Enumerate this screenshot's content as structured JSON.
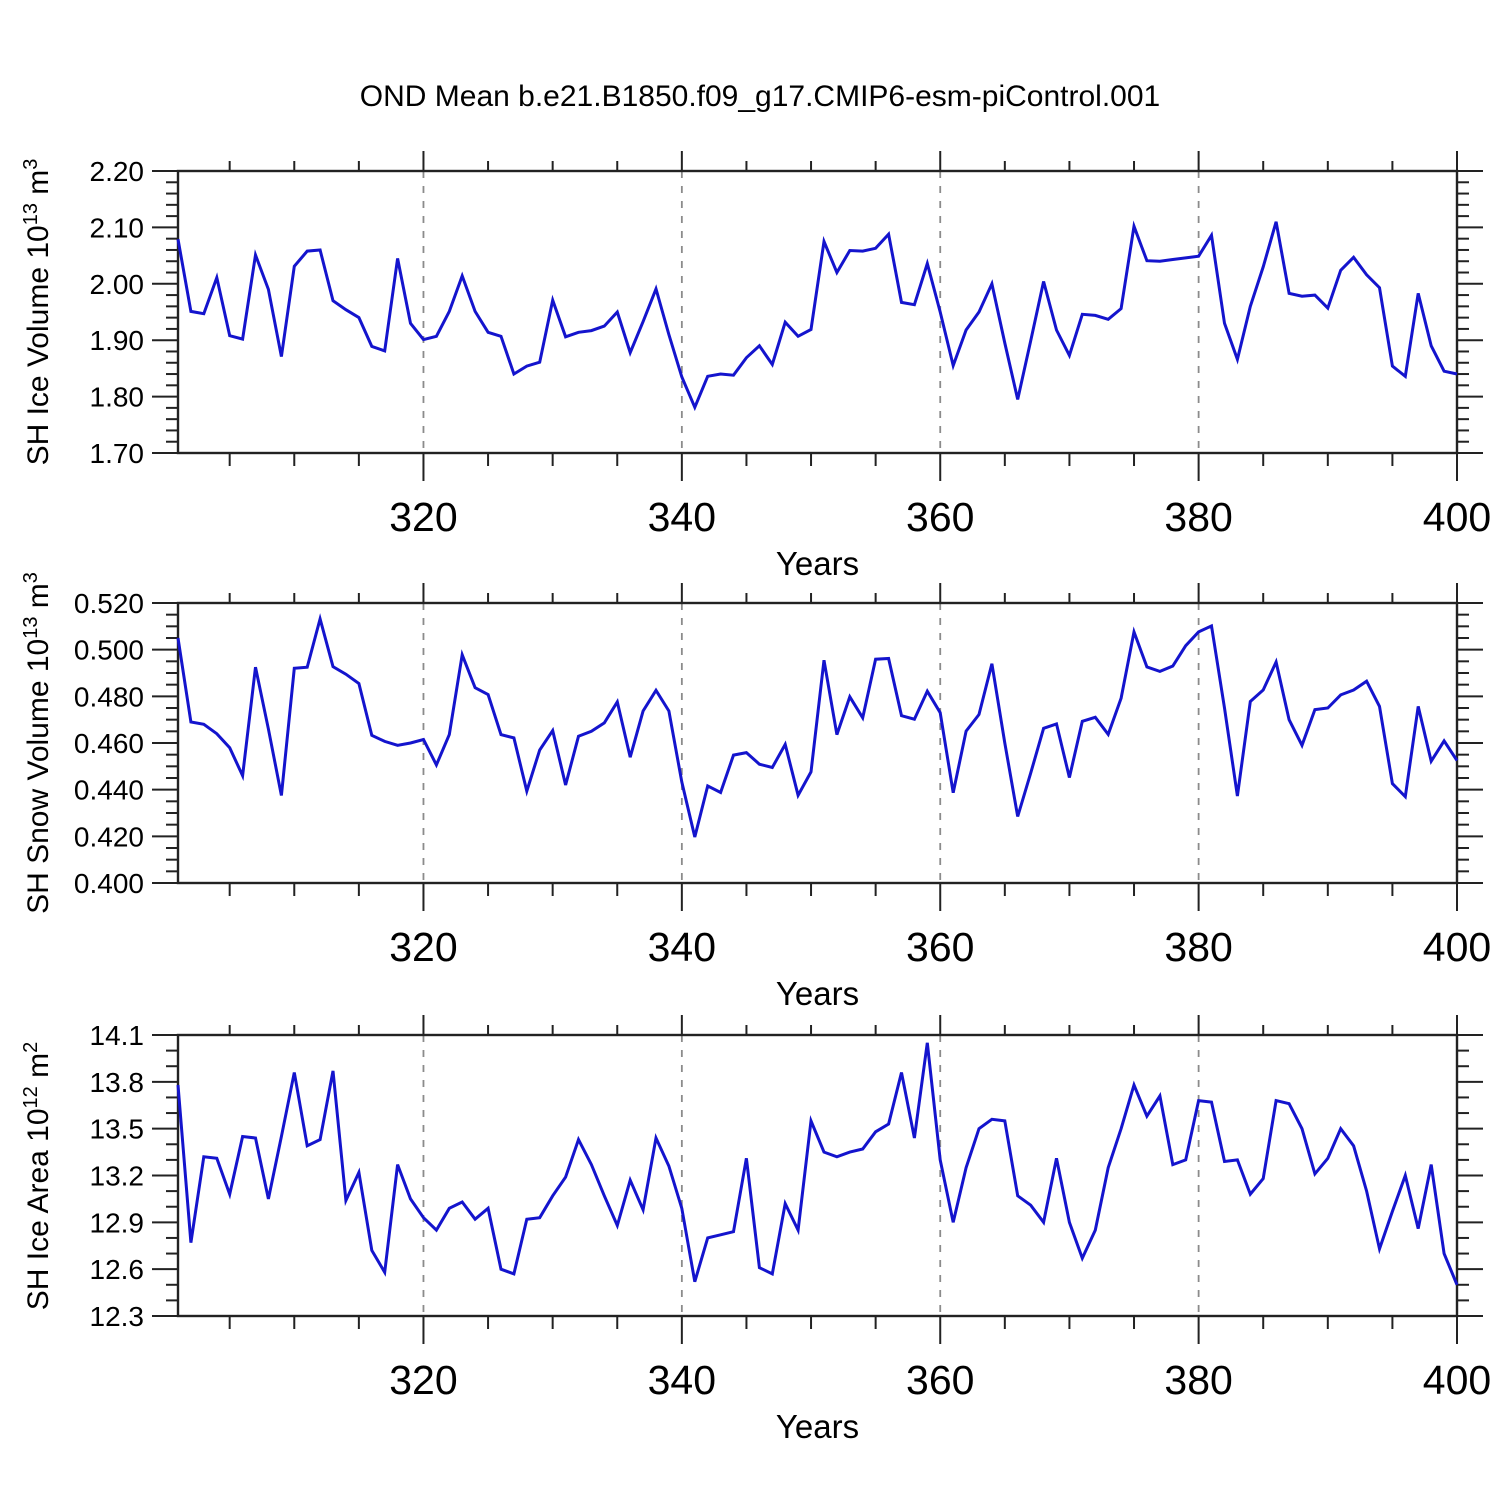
{
  "title": "OND Mean b.e21.B1850.f09_g17.CMIP6-esm-piControl.001",
  "colors": {
    "line": "#1414CD",
    "grid": "#8B8B8B",
    "axis": "#222222",
    "text": "#000000",
    "background": "#FFFFFF"
  },
  "x_axis": {
    "label": "Years",
    "range": [
      301,
      400
    ],
    "tick_years": [
      320,
      340,
      360,
      380,
      400
    ],
    "tick_labels": [
      "320",
      "340",
      "360",
      "380",
      "400"
    ],
    "minor_tick_step": 5,
    "gridline_years": [
      320,
      340,
      360,
      380
    ]
  },
  "chart_data": {
    "type": "line",
    "title": "OND Mean b.e21.B1850.f09_g17.CMIP6-esm-piControl.001",
    "xlabel": "Years",
    "legend": null,
    "years": [
      301,
      302,
      303,
      304,
      305,
      306,
      307,
      308,
      309,
      310,
      311,
      312,
      313,
      314,
      315,
      316,
      317,
      318,
      319,
      320,
      321,
      322,
      323,
      324,
      325,
      326,
      327,
      328,
      329,
      330,
      331,
      332,
      333,
      334,
      335,
      336,
      337,
      338,
      339,
      340,
      341,
      342,
      343,
      344,
      345,
      346,
      347,
      348,
      349,
      350,
      351,
      352,
      353,
      354,
      355,
      356,
      357,
      358,
      359,
      360,
      361,
      362,
      363,
      364,
      365,
      366,
      367,
      368,
      369,
      370,
      371,
      372,
      373,
      374,
      375,
      376,
      377,
      378,
      379,
      380,
      381,
      382,
      383,
      384,
      385,
      386,
      387,
      388,
      389,
      390,
      391,
      392,
      393,
      394,
      395,
      396,
      397,
      398,
      399,
      400
    ],
    "panels": [
      {
        "name": "sh-ice-volume",
        "ylabel_parts": {
          "pre": "SH Ice Volume 10",
          "sup1": "13",
          "mid": " m",
          "sup2": "3"
        },
        "ylim": [
          1.7,
          2.2
        ],
        "ytick_values": [
          1.7,
          1.8,
          1.9,
          2.0,
          2.1,
          2.2
        ],
        "ytick_labels": [
          "1.70",
          "1.80",
          "1.90",
          "2.00",
          "2.10",
          "2.20"
        ],
        "minor_step": 0.02,
        "values": [
          2.079,
          1.951,
          1.947,
          2.011,
          1.908,
          1.902,
          2.051,
          1.99,
          1.871,
          2.031,
          2.058,
          2.06,
          1.97,
          1.954,
          1.94,
          1.889,
          1.881,
          2.045,
          1.93,
          1.901,
          1.907,
          1.951,
          2.014,
          1.951,
          1.914,
          1.907,
          1.84,
          1.854,
          1.861,
          1.971,
          1.906,
          1.914,
          1.917,
          1.925,
          1.95,
          1.878,
          1.933,
          1.991,
          1.91,
          1.835,
          1.781,
          1.836,
          1.84,
          1.838,
          1.869,
          1.89,
          1.857,
          1.932,
          1.907,
          1.919,
          2.075,
          2.02,
          2.059,
          2.058,
          2.063,
          2.088,
          1.967,
          1.963,
          2.036,
          1.95,
          1.855,
          1.918,
          1.95,
          2.0,
          1.895,
          1.795,
          1.899,
          2.004,
          1.918,
          1.873,
          1.946,
          1.944,
          1.937,
          1.956,
          2.102,
          2.041,
          2.04,
          2.043,
          2.046,
          2.049,
          2.086,
          1.93,
          1.866,
          1.96,
          2.03,
          2.11,
          1.983,
          1.978,
          1.98,
          1.957,
          2.024,
          2.047,
          2.016,
          1.993,
          1.854,
          1.836,
          1.983,
          1.89,
          1.845,
          1.84
        ]
      },
      {
        "name": "sh-snow-volume",
        "ylabel_parts": {
          "pre": "SH Snow Volume 10",
          "sup1": "13",
          "mid": " m",
          "sup2": "3"
        },
        "ylim": [
          0.4,
          0.52
        ],
        "ytick_values": [
          0.4,
          0.42,
          0.44,
          0.46,
          0.48,
          0.5,
          0.52
        ],
        "ytick_labels": [
          "0.400",
          "0.420",
          "0.440",
          "0.460",
          "0.480",
          "0.500",
          "0.520"
        ],
        "minor_step": 0.005,
        "values": [
          0.505,
          0.469,
          0.468,
          0.464,
          0.458,
          0.446,
          0.4925,
          0.466,
          0.4375,
          0.492,
          0.4925,
          0.5132,
          0.4927,
          0.4895,
          0.4855,
          0.4633,
          0.4607,
          0.459,
          0.46,
          0.4615,
          0.4506,
          0.4636,
          0.4978,
          0.4837,
          0.4808,
          0.4636,
          0.4622,
          0.4394,
          0.457,
          0.4653,
          0.442,
          0.4629,
          0.465,
          0.4686,
          0.4776,
          0.4539,
          0.4737,
          0.4826,
          0.4737,
          0.4433,
          0.4197,
          0.4416,
          0.4388,
          0.4548,
          0.4559,
          0.4509,
          0.4495,
          0.4594,
          0.4376,
          0.4476,
          0.4955,
          0.4636,
          0.4798,
          0.4708,
          0.4959,
          0.4962,
          0.4717,
          0.4702,
          0.4822,
          0.473,
          0.4387,
          0.4651,
          0.4722,
          0.494,
          0.46,
          0.4285,
          0.4471,
          0.4663,
          0.4682,
          0.4452,
          0.4693,
          0.471,
          0.4637,
          0.4792,
          0.5076,
          0.4926,
          0.4907,
          0.493,
          0.5017,
          0.5076,
          0.5102,
          0.475,
          0.4373,
          0.4778,
          0.4827,
          0.4947,
          0.47,
          0.459,
          0.4743,
          0.475,
          0.4806,
          0.4827,
          0.4865,
          0.4757,
          0.4426,
          0.437,
          0.4757,
          0.4522,
          0.4609,
          0.4525
        ]
      },
      {
        "name": "sh-ice-area",
        "ylabel_parts": {
          "pre": "SH Ice Area 10",
          "sup1": "12",
          "mid": " m",
          "sup2": "2"
        },
        "ylim": [
          12.3,
          14.1
        ],
        "ytick_values": [
          12.3,
          12.6,
          12.9,
          13.2,
          13.5,
          13.8,
          14.1
        ],
        "ytick_labels": [
          "12.3",
          "12.6",
          "12.9",
          "13.2",
          "13.5",
          "13.8",
          "14.1"
        ],
        "minor_step": 0.1,
        "values": [
          13.78,
          12.77,
          13.32,
          13.31,
          13.08,
          13.45,
          13.44,
          13.05,
          13.45,
          13.86,
          13.39,
          13.43,
          13.87,
          13.04,
          13.22,
          12.72,
          12.58,
          13.27,
          13.05,
          12.93,
          12.85,
          12.99,
          13.03,
          12.92,
          12.99,
          12.6,
          12.57,
          12.92,
          12.93,
          13.07,
          13.19,
          13.43,
          13.27,
          13.07,
          12.88,
          13.17,
          12.98,
          13.44,
          13.26,
          12.99,
          12.52,
          12.8,
          12.82,
          12.84,
          13.31,
          12.61,
          12.57,
          13.02,
          12.85,
          13.55,
          13.35,
          13.32,
          13.35,
          13.37,
          13.48,
          13.53,
          13.86,
          13.44,
          14.05,
          13.3,
          12.9,
          13.25,
          13.5,
          13.56,
          13.55,
          13.07,
          13.01,
          12.9,
          13.31,
          12.9,
          12.67,
          12.85,
          13.25,
          13.5,
          13.78,
          13.58,
          13.71,
          13.27,
          13.3,
          13.68,
          13.67,
          13.29,
          13.3,
          13.08,
          13.18,
          13.68,
          13.66,
          13.5,
          13.21,
          13.31,
          13.5,
          13.39,
          13.1,
          12.73,
          12.97,
          13.2,
          12.86,
          13.27,
          12.7,
          12.5
        ]
      }
    ]
  }
}
